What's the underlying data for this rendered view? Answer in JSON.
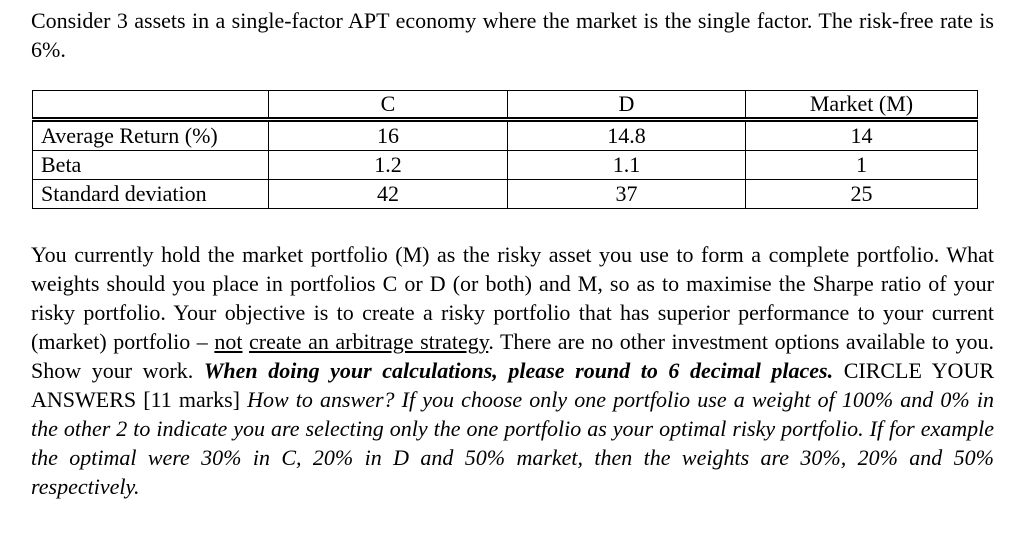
{
  "intro": {
    "text": "Consider 3 assets in a single-factor APT economy where the market is the single factor. The risk-free rate is 6%."
  },
  "table": {
    "columns": [
      "",
      "C",
      "D",
      "Market (M)"
    ],
    "rows": [
      {
        "label": "Average Return (%)",
        "values": [
          "16",
          "14.8",
          "14"
        ]
      },
      {
        "label": "Beta",
        "values": [
          "1.2",
          "1.1",
          "1"
        ]
      },
      {
        "label": "Standard deviation",
        "values": [
          "42",
          "37",
          "25"
        ]
      }
    ]
  },
  "question": {
    "runs": [
      {
        "style": "normal",
        "text": "You currently hold the market portfolio (M) as the risky asset you use to form a complete portfolio. What weights should you place in portfolios C or D (or both) and M, so as to maximise the Sharpe ratio of your risky portfolio. Your objective is to create a risky portfolio that has superior performance to your current (market) portfolio – "
      },
      {
        "style": "underline",
        "text": "not"
      },
      {
        "style": "normal",
        "text": " "
      },
      {
        "style": "underline",
        "text": "create an arbitrage strategy"
      },
      {
        "style": "normal",
        "text": ". There are no other investment options available to you. Show your work. "
      },
      {
        "style": "bold-italic",
        "text": "When doing your calculations, please round to 6 decimal places."
      },
      {
        "style": "normal",
        "text": " CIRCLE YOUR ANSWERS [11 marks] "
      },
      {
        "style": "italic",
        "text": "How to answer? If you choose only one portfolio use a weight of 100% and 0% in the other 2 to indicate you are selecting only the one portfolio as your optimal risky portfolio. If for example the optimal were 30% in C, 20% in D and 50% market, then the weights are 30%, 20% and 50% respectively."
      }
    ]
  }
}
